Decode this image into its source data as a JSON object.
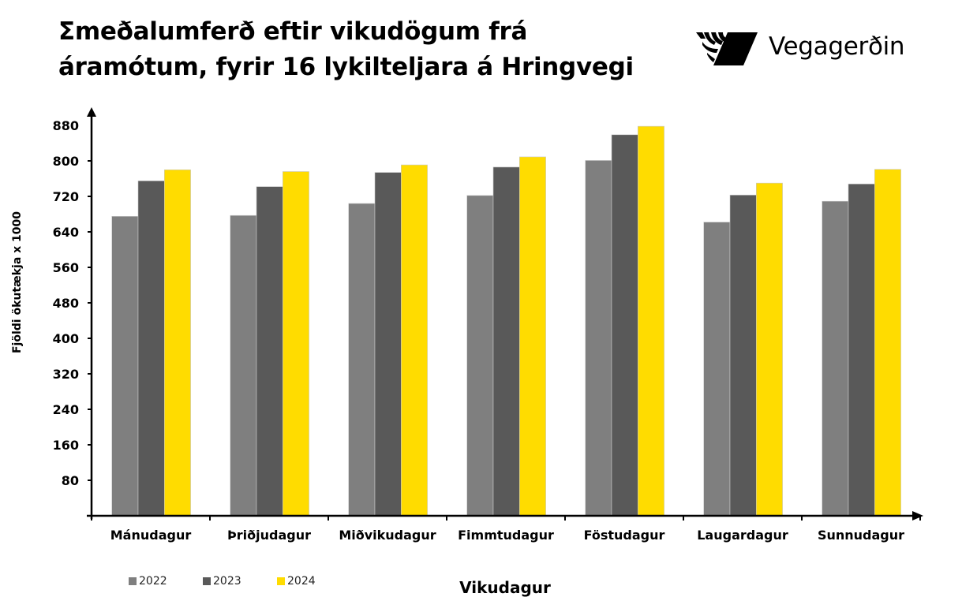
{
  "title": {
    "line1": "Σmeðalumferð eftir vikudögum frá",
    "line2": "áramótum, fyrir 16 lykilteljara á Hringvegi"
  },
  "brand": {
    "name": "Vegagerðin",
    "logo_icon": "vegagerdin-logo-icon"
  },
  "colors": {
    "2022": "#7f7f7f",
    "2023": "#595959",
    "2024": "#ffdc00",
    "axis": "#000000"
  },
  "legend": [
    {
      "label": "2022",
      "color": "#7f7f7f"
    },
    {
      "label": "2023",
      "color": "#595959"
    },
    {
      "label": "2024",
      "color": "#ffdc00"
    }
  ],
  "chart_data": {
    "type": "bar",
    "title": "Σmeðalumferð eftir vikudögum frá áramótum, fyrir 16 lykilteljara á Hringvegi",
    "xlabel": "Vikudagur",
    "ylabel": "Fjöldi ökutækja x 1000",
    "categories": [
      "Mánudagur",
      "Þriðjudagur",
      "Miðvikudagur",
      "Fimmtudagur",
      "Föstudagur",
      "Laugardagur",
      "Sunnudagur"
    ],
    "series": [
      {
        "name": "2022",
        "color": "#7f7f7f",
        "values": [
          675,
          677,
          704,
          722,
          801,
          662,
          709
        ]
      },
      {
        "name": "2023",
        "color": "#595959",
        "values": [
          755,
          742,
          774,
          786,
          859,
          723,
          748
        ]
      },
      {
        "name": "2024",
        "color": "#ffdc00",
        "values": [
          780,
          776,
          791,
          809,
          878,
          750,
          781
        ]
      }
    ],
    "yticks": [
      80,
      160,
      240,
      320,
      400,
      480,
      560,
      640,
      720,
      800,
      880
    ],
    "ylim": [
      0,
      880
    ],
    "grid": false,
    "legend_position": "bottom-left"
  }
}
